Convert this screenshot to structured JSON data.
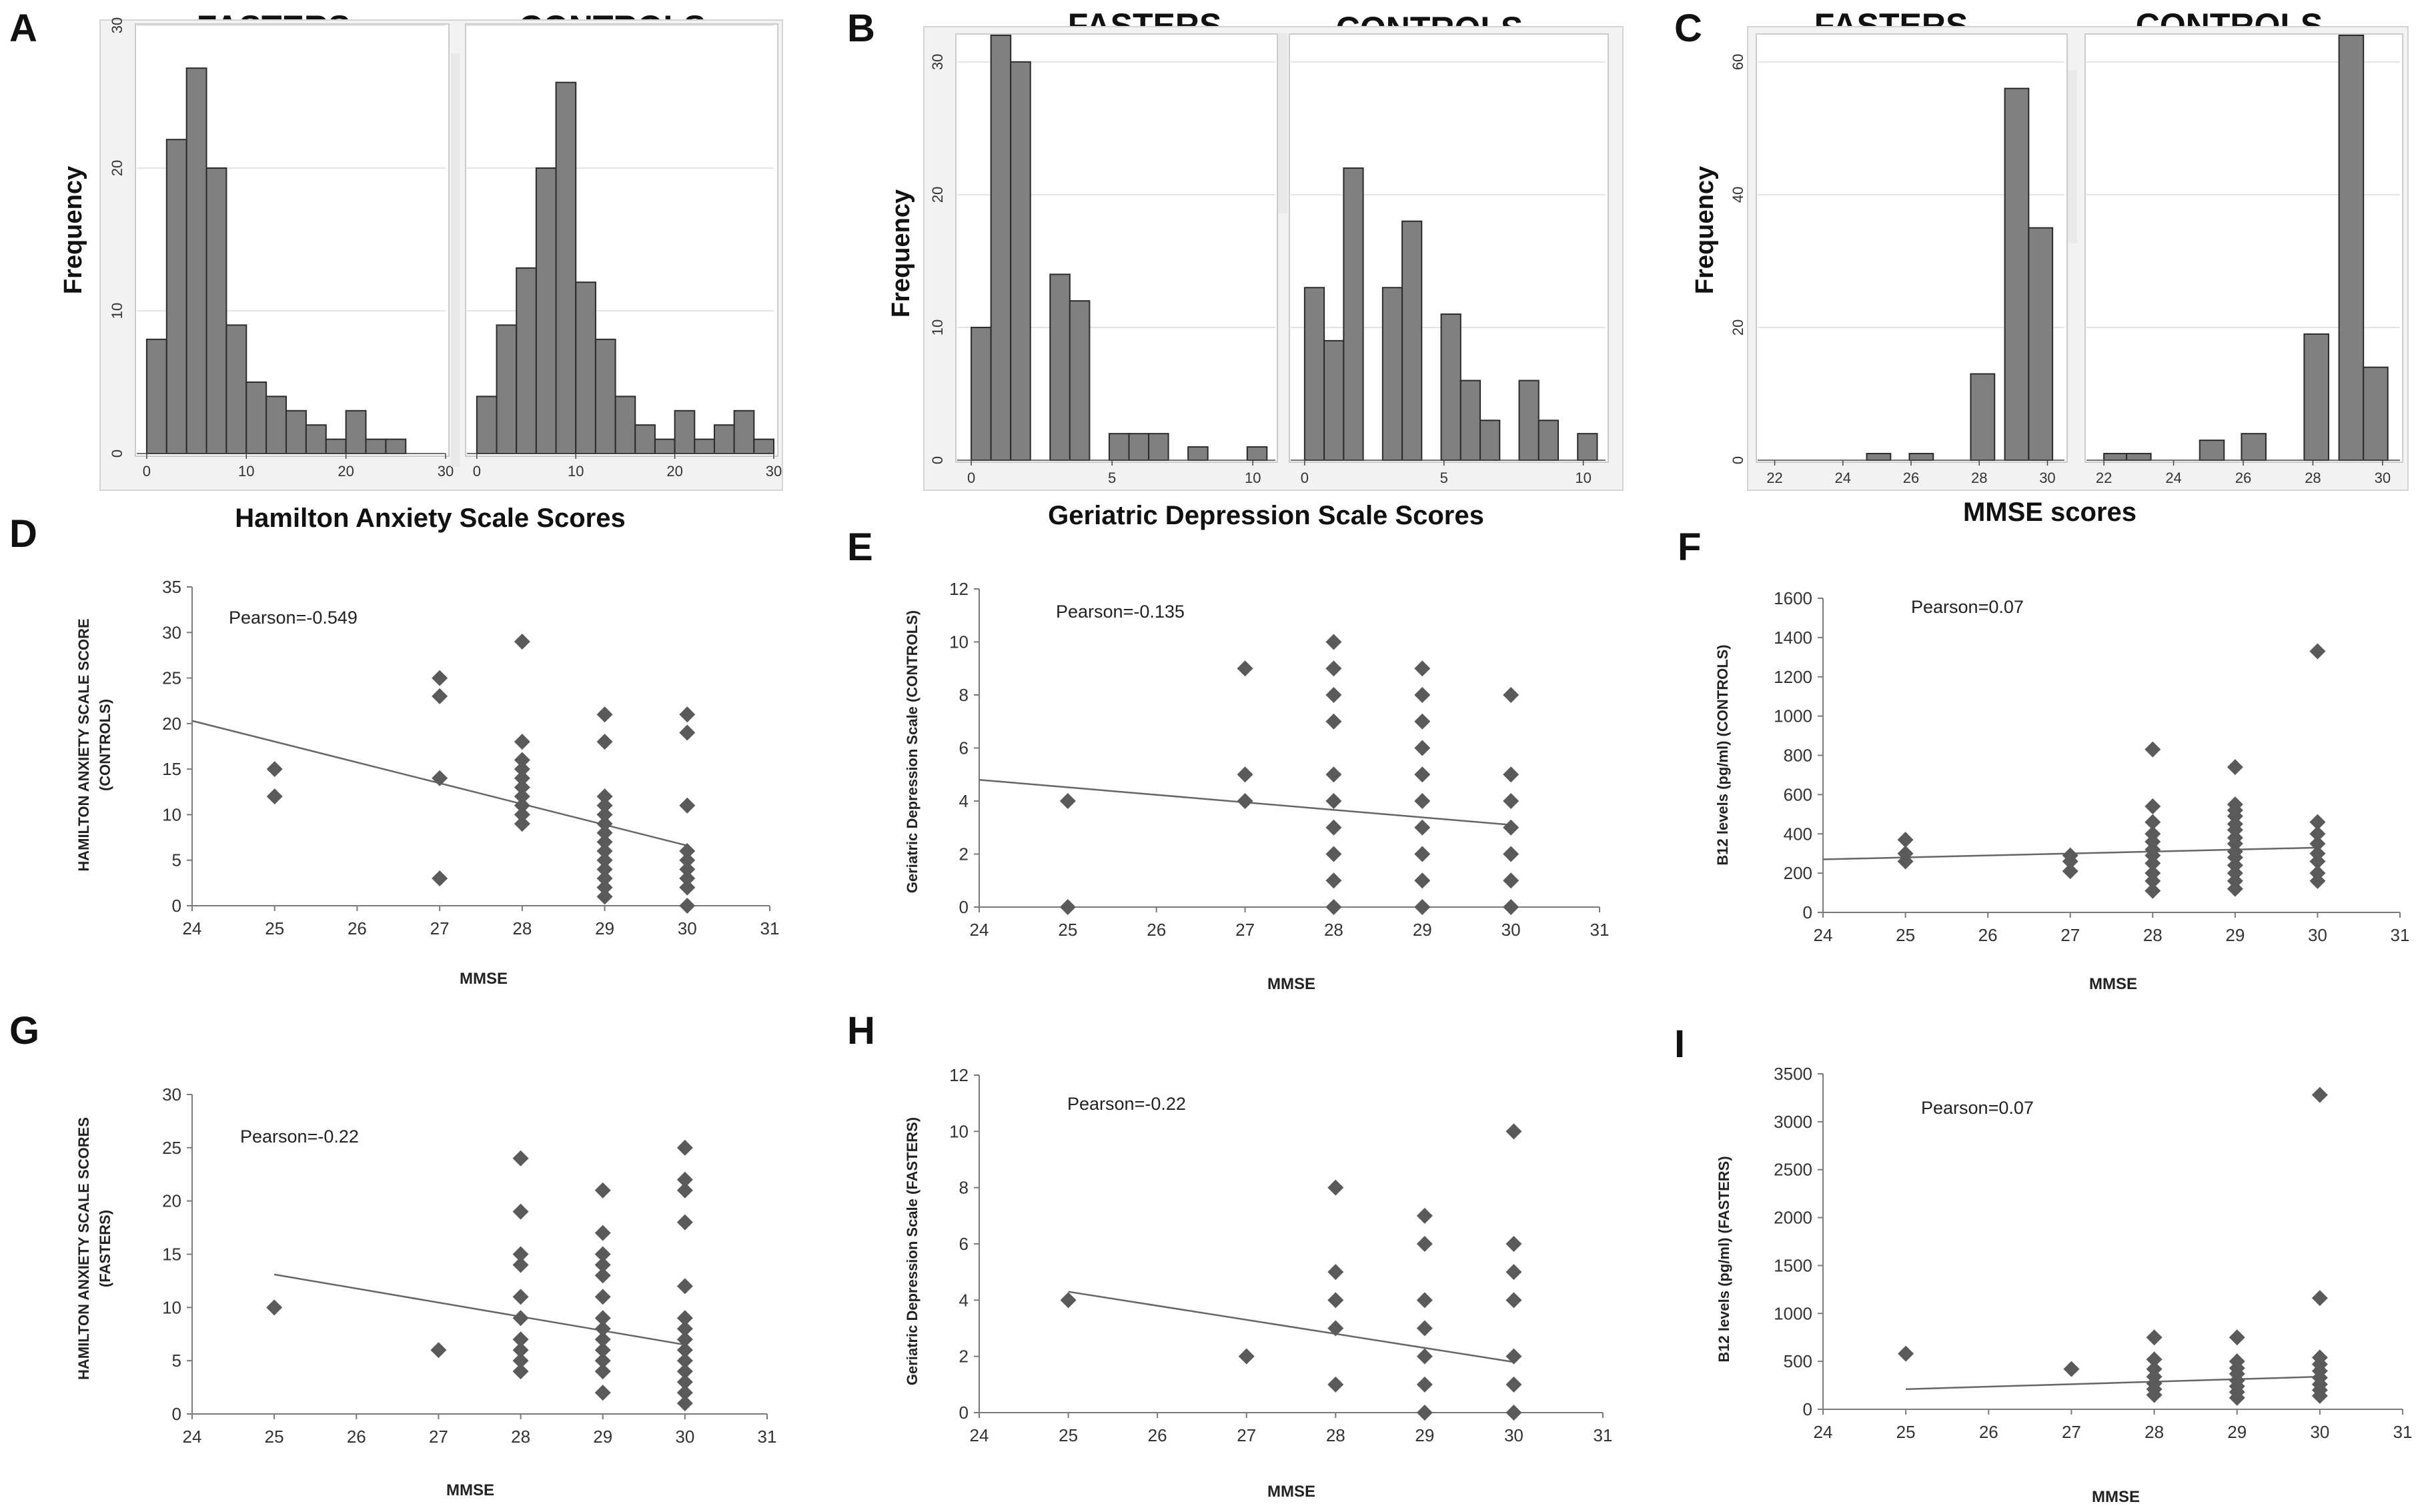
{
  "colors": {
    "bar": "#808080",
    "bar_stroke": "#2b2b2b",
    "marker": "#5a5a5a",
    "frame": "#d4d4d4",
    "gridline": "#e4e4e4",
    "trend": "#666666"
  },
  "chart_data": [
    {
      "panel": "A",
      "type": "bar",
      "title_left": "FASTERS",
      "title_right": "CONTROLS",
      "xlabel": "Hamilton Anxiety Scale Scores",
      "ylabel": "Frequency",
      "ylim": [
        0,
        30
      ],
      "yticks": [
        "0",
        "10",
        "20",
        "30"
      ],
      "subplots": [
        {
          "group": "FASTERS",
          "xlim": [
            -1,
            30
          ],
          "xticks": [
            "0",
            "10",
            "20",
            "30"
          ],
          "bin_width": 2,
          "bins": [
            0,
            2,
            4,
            6,
            8,
            10,
            12,
            14,
            16,
            18,
            20,
            22,
            24,
            26
          ],
          "values": [
            8,
            22,
            27,
            20,
            9,
            5,
            4,
            3,
            2,
            1,
            3,
            1,
            1,
            0
          ]
        },
        {
          "group": "CONTROLS",
          "xlim": [
            -1,
            30
          ],
          "xticks": [
            "0",
            "10",
            "20",
            "30"
          ],
          "bin_width": 2,
          "bins": [
            0,
            2,
            4,
            6,
            8,
            10,
            12,
            14,
            16,
            18,
            20,
            22,
            24,
            26,
            28
          ],
          "values": [
            4,
            9,
            13,
            20,
            26,
            12,
            8,
            4,
            2,
            1,
            3,
            1,
            2,
            3,
            1
          ]
        }
      ]
    },
    {
      "panel": "B",
      "type": "bar",
      "title_left": "FASTERS",
      "title_right": "CONTROLS",
      "xlabel": "Geriatric Depression Scale Scores",
      "ylabel": "Frequency",
      "ylim": [
        0,
        32
      ],
      "yticks": [
        "0",
        "10",
        "20",
        "30"
      ],
      "subplots": [
        {
          "group": "FASTERS",
          "xlim": [
            -0.5,
            10.8
          ],
          "xticks": [
            "0",
            "5",
            "10"
          ],
          "bin_width": 0.7,
          "bins": [
            0,
            0.7,
            1.4,
            2.8,
            3.5,
            4.9,
            5.6,
            6.3,
            7.7,
            9.8
          ],
          "values": [
            10,
            32,
            30,
            14,
            12,
            2,
            2,
            2,
            1,
            1
          ]
        },
        {
          "group": "CONTROLS",
          "xlim": [
            -0.5,
            10.8
          ],
          "xticks": [
            "0",
            "5",
            "10"
          ],
          "bin_width": 0.7,
          "bins": [
            0,
            0.7,
            1.4,
            2.8,
            3.5,
            4.9,
            5.6,
            6.3,
            7.7,
            8.4,
            9.8
          ],
          "values": [
            13,
            9,
            22,
            13,
            18,
            11,
            6,
            3,
            6,
            3,
            2
          ]
        }
      ]
    },
    {
      "panel": "C",
      "type": "bar",
      "title_left": "FASTERS",
      "title_right": "CONTROLS",
      "xlabel": "MMSE scores",
      "ylabel": "Frequency",
      "ylim": [
        0,
        64
      ],
      "yticks": [
        "0",
        "20",
        "40",
        "60"
      ],
      "subplots": [
        {
          "group": "FASTERS",
          "xlim": [
            21.5,
            30.5
          ],
          "xticks": [
            "22",
            "24",
            "26",
            "28",
            "30"
          ],
          "bin_width": 0.7,
          "bins": [
            24.7,
            25.95,
            27.75,
            28.75,
            29.45
          ],
          "values": [
            1,
            1,
            13,
            56,
            35
          ]
        },
        {
          "group": "CONTROLS",
          "xlim": [
            21.5,
            30.5
          ],
          "xticks": [
            "22",
            "24",
            "26",
            "28",
            "30"
          ],
          "bin_width": 0.7,
          "bins": [
            22,
            22.65,
            24.75,
            25.95,
            27.75,
            28.75,
            29.45
          ],
          "values": [
            1,
            1,
            3,
            4,
            19,
            64,
            14
          ]
        }
      ]
    },
    {
      "panel": "D",
      "type": "scatter",
      "xlabel": "MMSE",
      "ylabel_lines": [
        "HAMILTON ANXIETY SCALE SCORE",
        "(CONTROLS)"
      ],
      "pearson": "Pearson=-0.549",
      "xlim": [
        24,
        31
      ],
      "ylim": [
        0,
        35
      ],
      "xticks": [
        "24",
        "25",
        "26",
        "27",
        "28",
        "29",
        "30",
        "31"
      ],
      "yticks": [
        "0",
        "5",
        "10",
        "15",
        "20",
        "25",
        "30",
        "35"
      ],
      "points": [
        [
          25,
          15
        ],
        [
          25,
          12
        ],
        [
          27,
          25
        ],
        [
          27,
          23
        ],
        [
          27,
          14
        ],
        [
          27,
          3
        ],
        [
          28,
          29
        ],
        [
          28,
          18
        ],
        [
          28,
          16
        ],
        [
          28,
          15
        ],
        [
          28,
          14
        ],
        [
          28,
          13
        ],
        [
          28,
          12
        ],
        [
          28,
          11
        ],
        [
          28,
          10
        ],
        [
          28,
          9
        ],
        [
          29,
          21
        ],
        [
          29,
          18
        ],
        [
          29,
          12
        ],
        [
          29,
          11
        ],
        [
          29,
          10
        ],
        [
          29,
          9
        ],
        [
          29,
          8
        ],
        [
          29,
          7
        ],
        [
          29,
          6
        ],
        [
          29,
          5
        ],
        [
          29,
          4
        ],
        [
          29,
          3
        ],
        [
          29,
          2
        ],
        [
          29,
          1
        ],
        [
          30,
          21
        ],
        [
          30,
          19
        ],
        [
          30,
          11
        ],
        [
          30,
          6
        ],
        [
          30,
          5
        ],
        [
          30,
          4
        ],
        [
          30,
          3
        ],
        [
          30,
          2
        ],
        [
          30,
          0
        ]
      ],
      "trendline": [
        [
          24,
          20.3
        ],
        [
          30,
          6.6
        ]
      ]
    },
    {
      "panel": "E",
      "type": "scatter",
      "xlabel": "MMSE",
      "ylabel_lines": [
        "Geriatric Depression Scale  (CONTROLS)"
      ],
      "pearson": "Pearson=-0.135",
      "xlim": [
        24,
        31
      ],
      "ylim": [
        0,
        12
      ],
      "xticks": [
        "24",
        "25",
        "26",
        "27",
        "28",
        "29",
        "30",
        "31"
      ],
      "yticks": [
        "0",
        "2",
        "4",
        "6",
        "8",
        "10",
        "12"
      ],
      "points": [
        [
          25,
          4
        ],
        [
          25,
          0
        ],
        [
          27,
          9
        ],
        [
          27,
          5
        ],
        [
          27,
          4
        ],
        [
          28,
          10
        ],
        [
          28,
          9
        ],
        [
          28,
          8
        ],
        [
          28,
          7
        ],
        [
          28,
          5
        ],
        [
          28,
          4
        ],
        [
          28,
          3
        ],
        [
          28,
          2
        ],
        [
          28,
          1
        ],
        [
          28,
          0
        ],
        [
          29,
          9
        ],
        [
          29,
          8
        ],
        [
          29,
          7
        ],
        [
          29,
          6
        ],
        [
          29,
          5
        ],
        [
          29,
          4
        ],
        [
          29,
          3
        ],
        [
          29,
          2
        ],
        [
          29,
          1
        ],
        [
          29,
          0
        ],
        [
          30,
          8
        ],
        [
          30,
          5
        ],
        [
          30,
          4
        ],
        [
          30,
          3
        ],
        [
          30,
          2
        ],
        [
          30,
          1
        ],
        [
          30,
          0
        ]
      ],
      "trendline": [
        [
          24,
          4.8
        ],
        [
          30,
          3.1
        ]
      ]
    },
    {
      "panel": "F",
      "type": "scatter",
      "xlabel": "MMSE",
      "ylabel_lines": [
        "B12 levels (pg/ml) (CONTROLS)"
      ],
      "pearson": "Pearson=0.07",
      "xlim": [
        24,
        31
      ],
      "ylim": [
        0,
        1600
      ],
      "xticks": [
        "24",
        "25",
        "26",
        "27",
        "28",
        "29",
        "30",
        "31"
      ],
      "yticks": [
        "0",
        "200",
        "400",
        "600",
        "800",
        "1000",
        "1200",
        "1400",
        "1600"
      ],
      "points": [
        [
          25,
          370
        ],
        [
          25,
          300
        ],
        [
          25,
          260
        ],
        [
          27,
          290
        ],
        [
          27,
          260
        ],
        [
          27,
          210
        ],
        [
          28,
          830
        ],
        [
          28,
          540
        ],
        [
          28,
          460
        ],
        [
          28,
          400
        ],
        [
          28,
          360
        ],
        [
          28,
          320
        ],
        [
          28,
          290
        ],
        [
          28,
          250
        ],
        [
          28,
          200
        ],
        [
          28,
          160
        ],
        [
          28,
          110
        ],
        [
          29,
          740
        ],
        [
          29,
          550
        ],
        [
          29,
          520
        ],
        [
          29,
          490
        ],
        [
          29,
          450
        ],
        [
          29,
          420
        ],
        [
          29,
          380
        ],
        [
          29,
          350
        ],
        [
          29,
          310
        ],
        [
          29,
          280
        ],
        [
          29,
          240
        ],
        [
          29,
          200
        ],
        [
          29,
          160
        ],
        [
          29,
          120
        ],
        [
          30,
          1330
        ],
        [
          30,
          460
        ],
        [
          30,
          400
        ],
        [
          30,
          350
        ],
        [
          30,
          300
        ],
        [
          30,
          260
        ],
        [
          30,
          200
        ],
        [
          30,
          160
        ]
      ],
      "trendline": [
        [
          24,
          270
        ],
        [
          30,
          330
        ]
      ]
    },
    {
      "panel": "G",
      "type": "scatter",
      "xlabel": "MMSE",
      "ylabel_lines": [
        "HAMILTON ANXIETY SCALE SCORES",
        "(FASTERS)"
      ],
      "pearson": "Pearson=-0.22",
      "xlim": [
        24,
        31
      ],
      "ylim": [
        0,
        30
      ],
      "xticks": [
        "24",
        "25",
        "26",
        "27",
        "28",
        "29",
        "30",
        "31"
      ],
      "yticks": [
        "0",
        "5",
        "10",
        "15",
        "20",
        "25",
        "30"
      ],
      "points": [
        [
          25,
          10
        ],
        [
          27,
          6
        ],
        [
          28,
          24
        ],
        [
          28,
          19
        ],
        [
          28,
          15
        ],
        [
          28,
          14
        ],
        [
          28,
          11
        ],
        [
          28,
          9
        ],
        [
          28,
          7
        ],
        [
          28,
          6
        ],
        [
          28,
          5
        ],
        [
          28,
          4
        ],
        [
          29,
          21
        ],
        [
          29,
          17
        ],
        [
          29,
          15
        ],
        [
          29,
          14
        ],
        [
          29,
          13
        ],
        [
          29,
          11
        ],
        [
          29,
          9
        ],
        [
          29,
          8
        ],
        [
          29,
          7
        ],
        [
          29,
          6
        ],
        [
          29,
          5
        ],
        [
          29,
          4
        ],
        [
          29,
          2
        ],
        [
          30,
          25
        ],
        [
          30,
          22
        ],
        [
          30,
          21
        ],
        [
          30,
          18
        ],
        [
          30,
          12
        ],
        [
          30,
          9
        ],
        [
          30,
          8
        ],
        [
          30,
          7
        ],
        [
          30,
          6
        ],
        [
          30,
          5
        ],
        [
          30,
          4
        ],
        [
          30,
          3
        ],
        [
          30,
          2
        ],
        [
          30,
          1
        ]
      ],
      "trendline": [
        [
          25,
          13.1
        ],
        [
          30,
          6.5
        ]
      ]
    },
    {
      "panel": "H",
      "type": "scatter",
      "xlabel": "MMSE",
      "ylabel_lines": [
        "Geriatric Depression Scale (FASTERS)"
      ],
      "pearson": "Pearson=-0.22",
      "xlim": [
        24,
        31
      ],
      "ylim": [
        0,
        12
      ],
      "xticks": [
        "24",
        "25",
        "26",
        "27",
        "28",
        "29",
        "30",
        "31"
      ],
      "yticks": [
        "0",
        "2",
        "4",
        "6",
        "8",
        "10",
        "12"
      ],
      "points": [
        [
          25,
          4
        ],
        [
          27,
          2
        ],
        [
          28,
          8
        ],
        [
          28,
          5
        ],
        [
          28,
          4
        ],
        [
          28,
          3
        ],
        [
          28,
          1
        ],
        [
          29,
          7
        ],
        [
          29,
          6
        ],
        [
          29,
          4
        ],
        [
          29,
          3
        ],
        [
          29,
          2
        ],
        [
          29,
          1
        ],
        [
          29,
          0
        ],
        [
          30,
          10
        ],
        [
          30,
          6
        ],
        [
          30,
          5
        ],
        [
          30,
          4
        ],
        [
          30,
          2
        ],
        [
          30,
          1
        ],
        [
          30,
          0
        ]
      ],
      "trendline": [
        [
          25,
          4.3
        ],
        [
          30,
          1.8
        ]
      ]
    },
    {
      "panel": "I",
      "type": "scatter",
      "xlabel": "MMSE",
      "ylabel_lines": [
        "B12 levels (pg/ml) (FASTERS)"
      ],
      "pearson": "Pearson=0.07",
      "xlim": [
        24,
        31
      ],
      "ylim": [
        0,
        3500
      ],
      "xticks": [
        "24",
        "25",
        "26",
        "27",
        "28",
        "29",
        "30",
        "31"
      ],
      "yticks": [
        "0",
        "500",
        "1000",
        "1500",
        "2000",
        "2500",
        "3000",
        "3500"
      ],
      "points": [
        [
          25,
          580
        ],
        [
          27,
          420
        ],
        [
          28,
          750
        ],
        [
          28,
          520
        ],
        [
          28,
          420
        ],
        [
          28,
          340
        ],
        [
          28,
          270
        ],
        [
          28,
          210
        ],
        [
          28,
          150
        ],
        [
          29,
          750
        ],
        [
          29,
          500
        ],
        [
          29,
          430
        ],
        [
          29,
          370
        ],
        [
          29,
          300
        ],
        [
          29,
          240
        ],
        [
          29,
          180
        ],
        [
          29,
          120
        ],
        [
          30,
          3280
        ],
        [
          30,
          1160
        ],
        [
          30,
          540
        ],
        [
          30,
          470
        ],
        [
          30,
          400
        ],
        [
          30,
          330
        ],
        [
          30,
          260
        ],
        [
          30,
          200
        ],
        [
          30,
          140
        ]
      ],
      "trendline": [
        [
          25,
          210
        ],
        [
          30,
          340
        ]
      ]
    }
  ]
}
